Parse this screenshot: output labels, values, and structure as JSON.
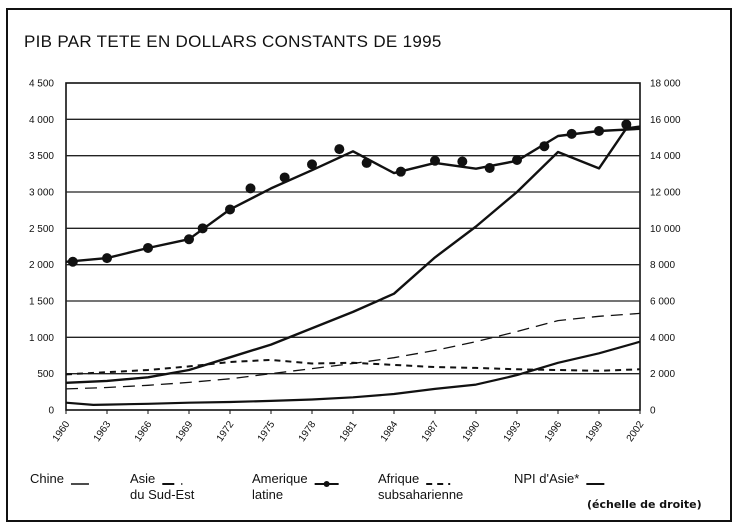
{
  "chart_data": {
    "type": "line",
    "title": "PIB PAR TETE EN DOLLARS CONSTANTS DE 1995",
    "x": [
      1960,
      1963,
      1966,
      1969,
      1972,
      1975,
      1978,
      1981,
      1984,
      1987,
      1990,
      1993,
      1996,
      1999,
      2002
    ],
    "x_tick_labels": [
      "1960",
      "1963",
      "1966",
      "1969",
      "1972",
      "1975",
      "1978",
      "1981",
      "1984",
      "1987",
      "1990",
      "1993",
      "1996",
      "1999",
      "2002"
    ],
    "left_axis": {
      "ylim": [
        0,
        4500
      ],
      "tick_labels": [
        "0",
        "500",
        "1 000",
        "1 500",
        "2 000",
        "2 500",
        "3 000",
        "3 500",
        "4 000",
        "4 500"
      ],
      "tick_values": [
        0,
        500,
        1000,
        1500,
        2000,
        2500,
        3000,
        3500,
        4000,
        4500
      ]
    },
    "right_axis": {
      "ylim": [
        0,
        18000
      ],
      "tick_labels": [
        "0",
        "2 000",
        "4 000",
        "6 000",
        "8 000",
        "10 000",
        "12 000",
        "14 000",
        "16 000",
        "18 000"
      ],
      "tick_values": [
        0,
        2000,
        4000,
        6000,
        8000,
        10000,
        12000,
        14000,
        16000,
        18000
      ]
    },
    "grid": "horizontal",
    "series": [
      {
        "name": "Chine",
        "axis": "left",
        "style": "solid",
        "x": [
          1960,
          1962,
          1963,
          1966,
          1969,
          1972,
          1975,
          1978,
          1981,
          1984,
          1987,
          1990,
          1993,
          1996,
          1999,
          2002
        ],
        "values": [
          100,
          70,
          75,
          85,
          100,
          110,
          125,
          145,
          175,
          220,
          290,
          350,
          480,
          650,
          780,
          940
        ]
      },
      {
        "name": "Asie du Sud-Est",
        "axis": "left",
        "style": "dashed",
        "x": [
          1960,
          1963,
          1966,
          1969,
          1972,
          1975,
          1978,
          1981,
          1984,
          1987,
          1990,
          1993,
          1996,
          1999,
          2002
        ],
        "values": [
          290,
          310,
          340,
          380,
          430,
          500,
          570,
          640,
          720,
          820,
          940,
          1080,
          1230,
          1290,
          1330
        ]
      },
      {
        "name": "Amérique latine",
        "axis": "left",
        "style": "dashed",
        "x": [
          1960,
          1963,
          1966,
          1969,
          1972,
          1975,
          1978,
          1981,
          1984,
          1987,
          1990,
          1993,
          1996,
          1999,
          2002
        ],
        "values": [
          2040,
          2090,
          2230,
          2350,
          2760,
          3050,
          3300,
          3560,
          3260,
          3400,
          3320,
          3430,
          3770,
          3840,
          3870
        ],
        "markers": [
          [
            1960.5,
            2040
          ],
          [
            1963,
            2090
          ],
          [
            1966,
            2230
          ],
          [
            1969,
            2350
          ],
          [
            1970,
            2500
          ],
          [
            1972,
            2760
          ],
          [
            1973.5,
            3050
          ],
          [
            1976,
            3200
          ],
          [
            1978,
            3380
          ],
          [
            1980,
            3590
          ],
          [
            1982,
            3400
          ],
          [
            1984.5,
            3280
          ],
          [
            1987,
            3430
          ],
          [
            1989,
            3420
          ],
          [
            1991,
            3330
          ],
          [
            1993,
            3440
          ],
          [
            1995,
            3630
          ],
          [
            1997,
            3800
          ],
          [
            1999,
            3840
          ],
          [
            2001,
            3930
          ]
        ]
      },
      {
        "name": "Afrique subsaharienne",
        "axis": "left",
        "style": "dashed",
        "x": [
          1960,
          1963,
          1966,
          1969,
          1972,
          1975,
          1978,
          1981,
          1984,
          1987,
          1990,
          1993,
          1996,
          1999,
          2002
        ],
        "values": [
          490,
          520,
          550,
          600,
          660,
          690,
          640,
          650,
          620,
          590,
          580,
          560,
          550,
          540,
          560
        ]
      },
      {
        "name": "NPI d'Asie*",
        "axis": "right",
        "style": "solid",
        "x": [
          1960,
          1963,
          1966,
          1969,
          1972,
          1975,
          1978,
          1981,
          1984,
          1987,
          1990,
          1993,
          1996,
          1999,
          2001,
          2002
        ],
        "values": [
          1500,
          1600,
          1800,
          2200,
          2900,
          3600,
          4500,
          5400,
          6400,
          8400,
          10100,
          12000,
          14200,
          13300,
          15500,
          15600
        ]
      }
    ]
  },
  "legend": [
    {
      "line1": "Chine",
      "line2": ""
    },
    {
      "line1": "Asie",
      "line2": "du Sud-Est"
    },
    {
      "line1": "Amerique",
      "line2": "latine"
    },
    {
      "line1": "Afrique",
      "line2": "subsaharienne"
    },
    {
      "line1": "NPI d'Asie*",
      "line2": ""
    }
  ],
  "axis_note": "(échelle de droite)"
}
